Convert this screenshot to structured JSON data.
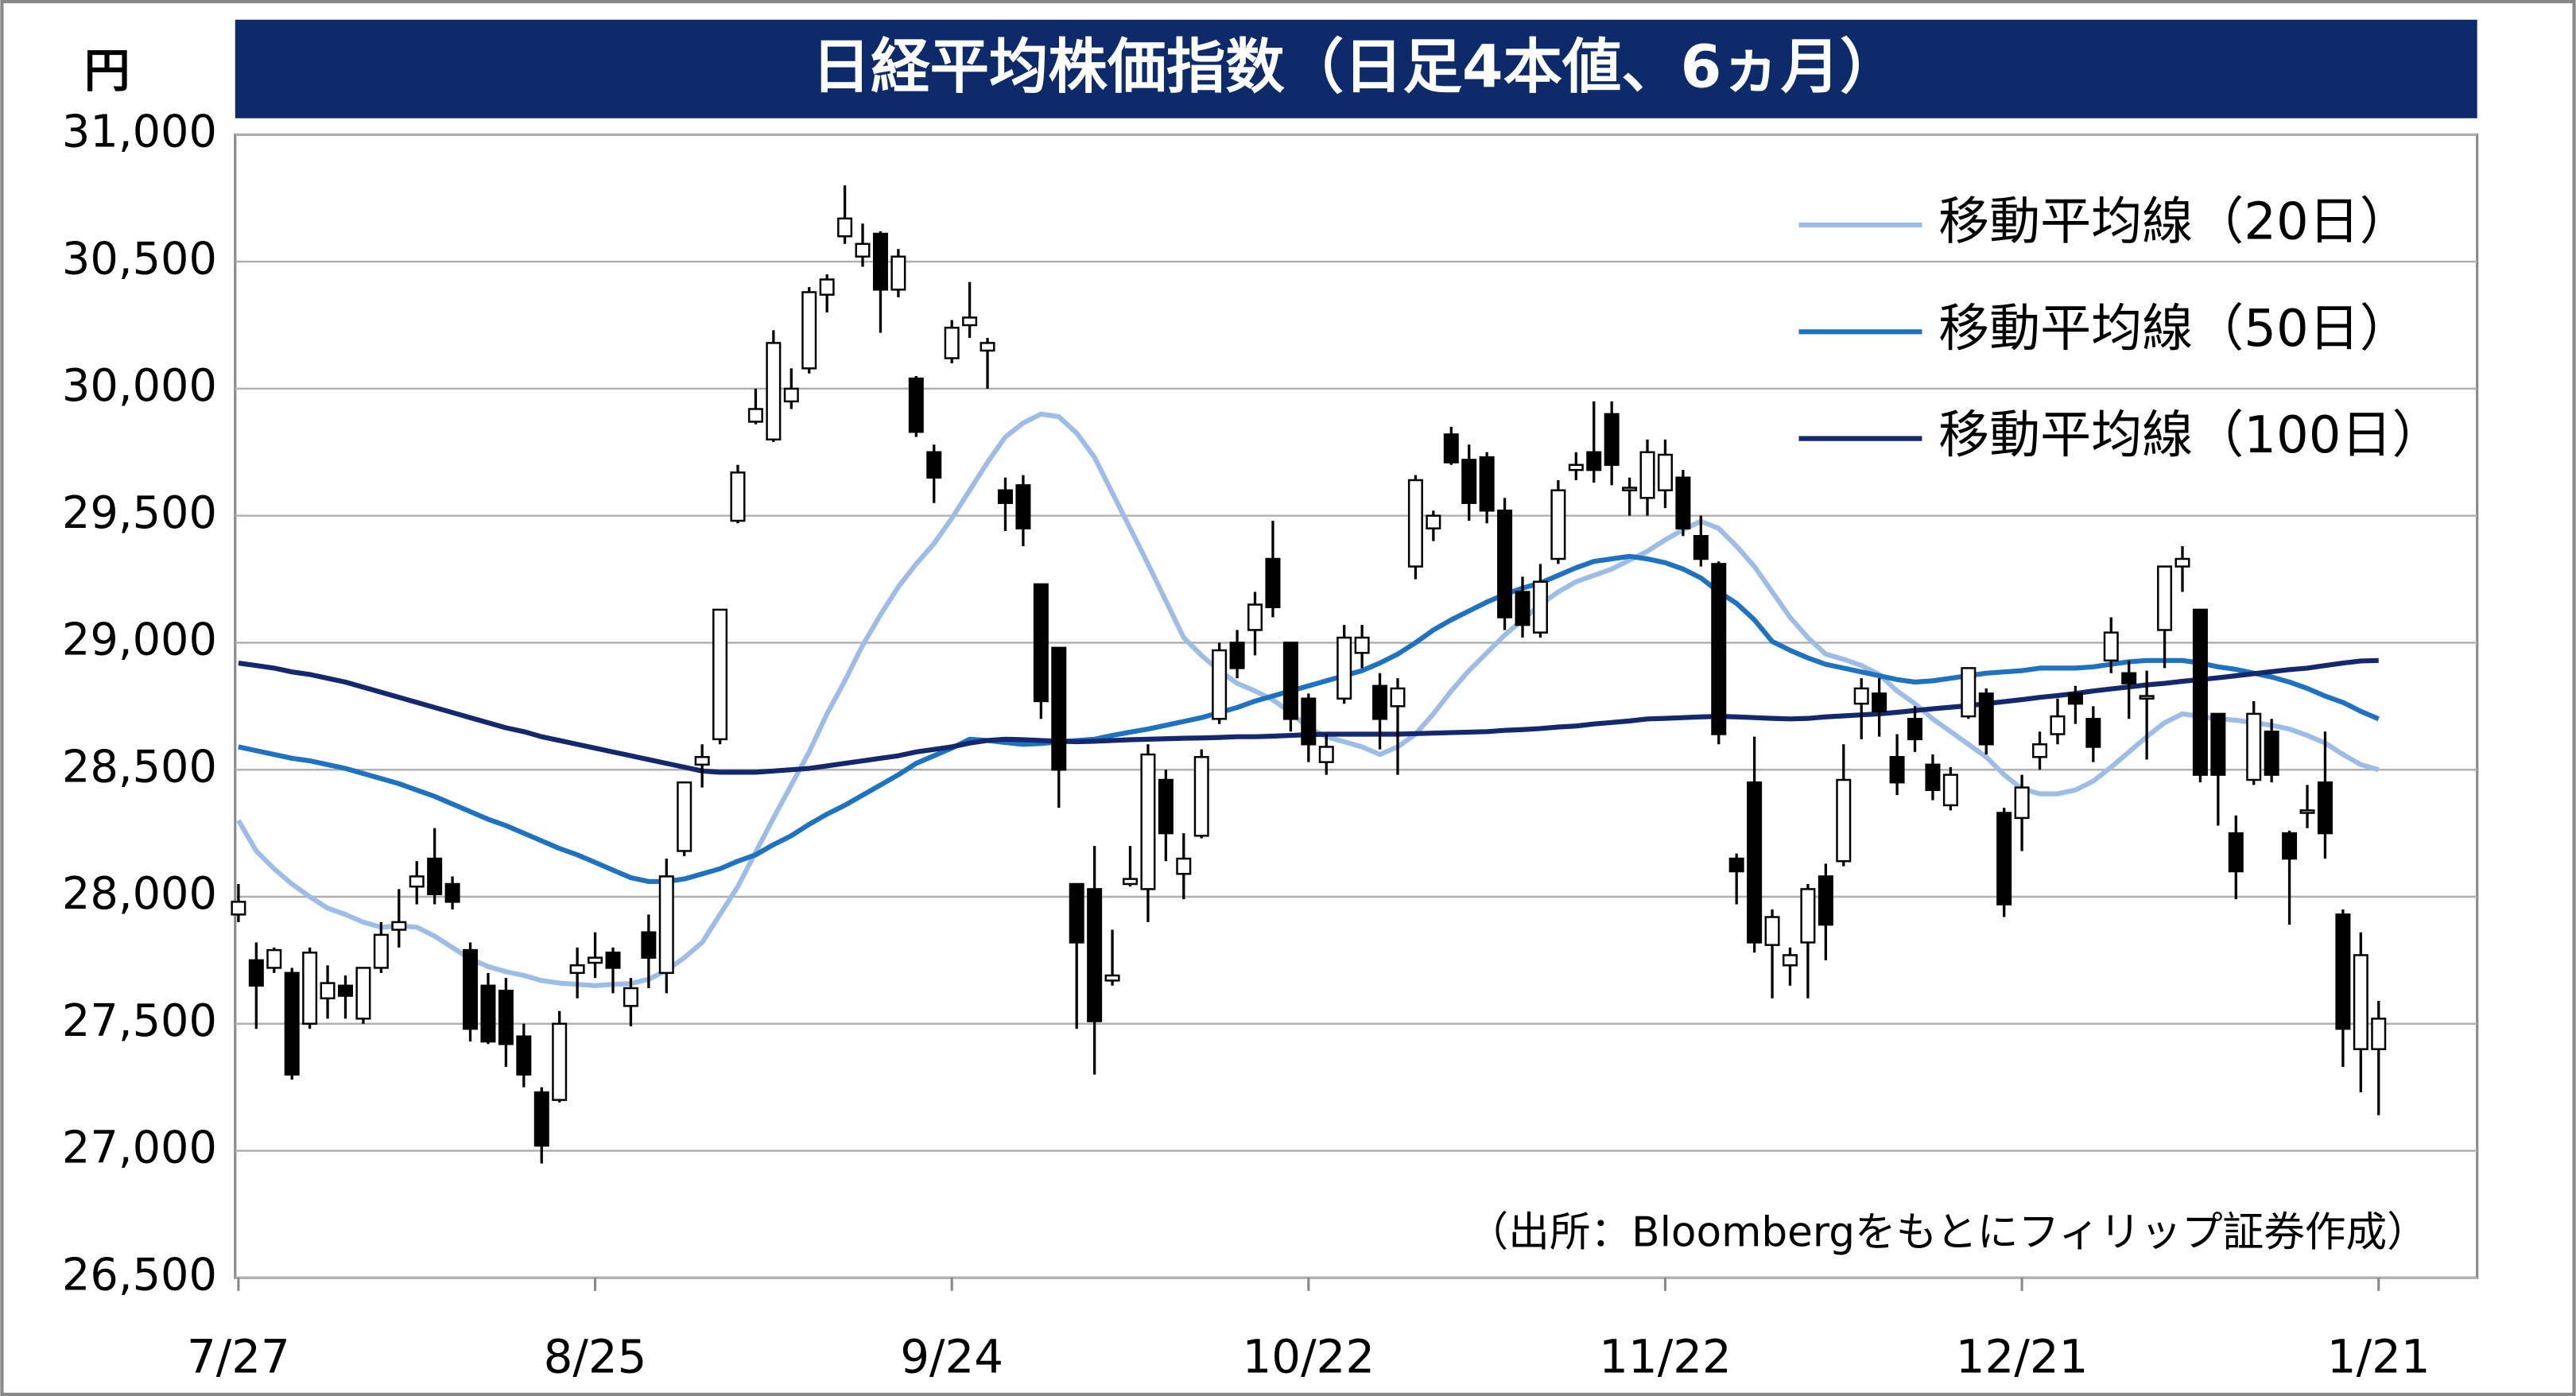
{
  "chart_data": {
    "type": "candlestick",
    "title": "日経平均株価指数（日足4本値、6ヵ月）",
    "y_unit": "円",
    "annotation": "（出所：Bloombergをもとにフィリップ証券作成）",
    "categories": [
      "7/27",
      null,
      null,
      null,
      null,
      null,
      null,
      null,
      null,
      null,
      null,
      null,
      null,
      null,
      null,
      null,
      null,
      null,
      null,
      null,
      "8/25",
      null,
      null,
      null,
      null,
      null,
      null,
      null,
      null,
      null,
      null,
      null,
      null,
      null,
      null,
      null,
      null,
      null,
      null,
      null,
      "9/24",
      null,
      null,
      null,
      null,
      null,
      null,
      null,
      null,
      null,
      null,
      null,
      null,
      null,
      null,
      null,
      null,
      null,
      null,
      null,
      "10/22",
      null,
      null,
      null,
      null,
      null,
      null,
      null,
      null,
      null,
      null,
      null,
      null,
      null,
      null,
      null,
      null,
      null,
      null,
      null,
      "11/22",
      null,
      null,
      null,
      null,
      null,
      null,
      null,
      null,
      null,
      null,
      null,
      null,
      null,
      null,
      null,
      null,
      null,
      null,
      null,
      "12/21",
      null,
      null,
      null,
      null,
      null,
      null,
      null,
      null,
      null,
      null,
      null,
      null,
      null,
      null,
      null,
      null,
      null,
      null,
      null,
      "1/21"
    ],
    "open": [
      27930,
      27750,
      27720,
      27700,
      27500,
      27600,
      27650,
      27520,
      27720,
      27870,
      28040,
      28150,
      28050,
      27790,
      27650,
      27630,
      27450,
      27230,
      27200,
      27700,
      27740,
      27780,
      27570,
      27860,
      27700,
      28180,
      28520,
      28620,
      29480,
      29870,
      29800,
      29950,
      30080,
      30370,
      30600,
      30520,
      30610,
      30390,
      30040,
      29750,
      30120,
      30250,
      30150,
      29600,
      29620,
      29230,
      28980,
      28050,
      28030,
      27670,
      28050,
      28030,
      28460,
      28090,
      28240,
      28700,
      29000,
      29050,
      29330,
      29000,
      28780,
      28530,
      28780,
      28960,
      28830,
      28750,
      29300,
      29450,
      29820,
      29720,
      29730,
      29520,
      29200,
      29040,
      29330,
      29680,
      29750,
      29900,
      29600,
      29570,
      29600,
      29650,
      29420,
      29310,
      28150,
      28450,
      27810,
      27730,
      27820,
      28080,
      28140,
      28760,
      28800,
      28550,
      28700,
      28520,
      28360,
      28710,
      28800,
      28330,
      28310,
      28550,
      28640,
      28800,
      28700,
      28930,
      28880,
      28780,
      29050,
      29300,
      29130,
      28720,
      28250,
      28460,
      28650,
      28250,
      28330,
      28450,
      27930,
      27400,
      27400
    ],
    "high": [
      28050,
      27820,
      27800,
      27720,
      27800,
      27730,
      27690,
      27720,
      27900,
      28030,
      28140,
      28270,
      28080,
      27820,
      27700,
      27680,
      27500,
      27250,
      27550,
      27800,
      27860,
      27800,
      27680,
      27930,
      28150,
      28450,
      28600,
      29130,
      29700,
      30000,
      30230,
      30080,
      30400,
      30450,
      30800,
      30650,
      30620,
      30550,
      30050,
      29780,
      30270,
      30420,
      30200,
      29650,
      29660,
      29230,
      28980,
      28050,
      28200,
      27870,
      28200,
      28600,
      28500,
      28250,
      28580,
      29000,
      29050,
      29200,
      29480,
      29000,
      28800,
      28640,
      29070,
      29070,
      28880,
      28860,
      29660,
      29520,
      29850,
      29780,
      29750,
      29570,
      29260,
      29310,
      29640,
      29750,
      29950,
      29950,
      29650,
      29800,
      29800,
      29680,
      29500,
      29320,
      28170,
      28630,
      27950,
      27800,
      28050,
      28130,
      28600,
      28860,
      28860,
      28640,
      28750,
      28560,
      28510,
      28900,
      28820,
      28350,
      28480,
      28650,
      28780,
      28830,
      28750,
      29100,
      28930,
      28890,
      29300,
      29380,
      29130,
      28720,
      28320,
      28770,
      28700,
      28260,
      28440,
      28650,
      27950,
      27860,
      27590
    ],
    "low": [
      27900,
      27480,
      27700,
      27280,
      27480,
      27520,
      27520,
      27500,
      27700,
      27800,
      27970,
      27970,
      27950,
      27430,
      27420,
      27330,
      27250,
      26950,
      27190,
      27600,
      27680,
      27620,
      27490,
      27640,
      27620,
      28160,
      28430,
      28600,
      29470,
      29860,
      29790,
      29920,
      30060,
      30300,
      30570,
      30480,
      30220,
      30360,
      29810,
      29550,
      30100,
      30200,
      30000,
      29440,
      29380,
      28700,
      28350,
      27480,
      27300,
      27650,
      28040,
      27900,
      28140,
      27990,
      28230,
      28680,
      28860,
      28950,
      29100,
      28650,
      28530,
      28480,
      28760,
      28900,
      28580,
      28480,
      29250,
      29400,
      29700,
      29480,
      29470,
      29050,
      29020,
      29020,
      29310,
      29640,
      29630,
      29620,
      29500,
      29500,
      29530,
      29420,
      29300,
      28600,
      27970,
      27780,
      27600,
      27650,
      27600,
      27750,
      28120,
      28620,
      28630,
      28400,
      28570,
      28380,
      28340,
      28700,
      28560,
      27920,
      28180,
      28500,
      28600,
      28680,
      28530,
      28880,
      28700,
      28540,
      28900,
      29200,
      28450,
      28280,
      27990,
      28440,
      28450,
      27890,
      28270,
      28150,
      27330,
      27230,
      27140
    ],
    "close": [
      27980,
      27650,
      27790,
      27300,
      27780,
      27660,
      27610,
      27720,
      27850,
      27900,
      28080,
      28010,
      27980,
      27480,
      27430,
      27420,
      27300,
      27020,
      27500,
      27730,
      27760,
      27720,
      27640,
      27760,
      28080,
      28450,
      28550,
      29130,
      29670,
      29920,
      30180,
      30000,
      30380,
      30430,
      30670,
      30570,
      30390,
      30520,
      29830,
      29650,
      30240,
      30280,
      30180,
      29550,
      29450,
      28770,
      28500,
      27820,
      27510,
      27690,
      28070,
      28560,
      28250,
      28150,
      28550,
      28970,
      28900,
      29150,
      29140,
      28700,
      28600,
      28590,
      29020,
      29020,
      28700,
      28820,
      29640,
      29500,
      29710,
      29550,
      29520,
      29100,
      29070,
      29240,
      29600,
      29700,
      29680,
      29700,
      29610,
      29750,
      29740,
      29450,
      29330,
      28640,
      28100,
      27820,
      27920,
      27770,
      28030,
      27890,
      28460,
      28820,
      28730,
      28450,
      28620,
      28420,
      28480,
      28900,
      28600,
      27970,
      28430,
      28600,
      28710,
      28760,
      28590,
      29040,
      28840,
      28790,
      29300,
      29330,
      28480,
      28480,
      28100,
      28720,
      28480,
      28150,
      28340,
      28250,
      27480,
      27770,
      27520
    ],
    "up_color": "#ffffff",
    "down_color": "#000000",
    "edge_color": "#000000",
    "series": [
      {
        "name": "移動平均線（20日）",
        "color": "#9dbde6",
        "values": [
          28300,
          28180,
          28110,
          28050,
          28000,
          27955,
          27930,
          27900,
          27880,
          27885,
          27880,
          27845,
          27800,
          27755,
          27725,
          27705,
          27690,
          27670,
          27660,
          27655,
          27650,
          27655,
          27658,
          27675,
          27710,
          27760,
          27820,
          27930,
          28040,
          28175,
          28310,
          28440,
          28570,
          28720,
          28850,
          28990,
          29110,
          29220,
          29310,
          29390,
          29490,
          29600,
          29710,
          29810,
          29865,
          29900,
          29890,
          29825,
          29730,
          29590,
          29450,
          29310,
          29165,
          29020,
          28950,
          28890,
          28840,
          28810,
          28775,
          28725,
          28665,
          28630,
          28610,
          28590,
          28560,
          28590,
          28640,
          28720,
          28810,
          28890,
          28960,
          29030,
          29090,
          29150,
          29200,
          29240,
          29265,
          29290,
          29325,
          29360,
          29405,
          29445,
          29478,
          29450,
          29380,
          29300,
          29200,
          29100,
          29020,
          28955,
          28935,
          28910,
          28875,
          28810,
          28760,
          28700,
          28650,
          28600,
          28550,
          28480,
          28425,
          28405,
          28405,
          28420,
          28455,
          28510,
          28570,
          28630,
          28685,
          28720,
          28710,
          28700,
          28695,
          28685,
          28675,
          28660,
          28635,
          28605,
          28560,
          28520,
          28500
        ]
      },
      {
        "name": "移動平均線（50日）",
        "color": "#1f72c0",
        "values": [
          28590,
          28575,
          28560,
          28545,
          28535,
          28520,
          28505,
          28485,
          28465,
          28445,
          28420,
          28395,
          28365,
          28335,
          28305,
          28280,
          28250,
          28220,
          28190,
          28165,
          28135,
          28105,
          28075,
          28060,
          28060,
          28070,
          28090,
          28110,
          28140,
          28165,
          28205,
          28240,
          28285,
          28325,
          28360,
          28400,
          28440,
          28480,
          28525,
          28555,
          28585,
          28620,
          28615,
          28607,
          28600,
          28603,
          28610,
          28615,
          28620,
          28635,
          28648,
          28660,
          28675,
          28690,
          28705,
          28725,
          28745,
          28770,
          28790,
          28810,
          28830,
          28850,
          28870,
          28890,
          28920,
          28955,
          29000,
          29050,
          29090,
          29125,
          29160,
          29190,
          29215,
          29235,
          29265,
          29295,
          29320,
          29330,
          29340,
          29330,
          29315,
          29290,
          29255,
          29200,
          29155,
          29090,
          29005,
          28970,
          28940,
          28915,
          28900,
          28885,
          28870,
          28855,
          28845,
          28850,
          28860,
          28870,
          28880,
          28885,
          28890,
          28900,
          28900,
          28900,
          28905,
          28915,
          28925,
          28930,
          28930,
          28930,
          28920,
          28905,
          28895,
          28880,
          28865,
          28845,
          28820,
          28790,
          28765,
          28730,
          28700
        ]
      },
      {
        "name": "移動平均線（100日）",
        "color": "#14286e",
        "values": [
          28920,
          28910,
          28900,
          28885,
          28875,
          28860,
          28845,
          28825,
          28805,
          28785,
          28765,
          28745,
          28725,
          28705,
          28685,
          28665,
          28650,
          28630,
          28615,
          28600,
          28585,
          28570,
          28555,
          28540,
          28525,
          28510,
          28495,
          28490,
          28490,
          28490,
          28495,
          28500,
          28505,
          28515,
          28525,
          28535,
          28545,
          28555,
          28570,
          28580,
          28590,
          28605,
          28615,
          28620,
          28618,
          28615,
          28612,
          28610,
          28612,
          28615,
          28618,
          28620,
          28622,
          28624,
          28625,
          28627,
          28630,
          28630,
          28632,
          28635,
          28638,
          28640,
          28640,
          28640,
          28640,
          28640,
          28642,
          28644,
          28646,
          28648,
          28650,
          28655,
          28658,
          28662,
          28668,
          28672,
          28680,
          28686,
          28692,
          28700,
          28702,
          28705,
          28708,
          28710,
          28708,
          28705,
          28702,
          28700,
          28702,
          28708,
          28712,
          28716,
          28720,
          28726,
          28733,
          28740,
          28746,
          28752,
          28760,
          28768,
          28776,
          28785,
          28792,
          28800,
          28810,
          28818,
          28826,
          28834,
          28840,
          28848,
          28855,
          28862,
          28870,
          28878,
          28886,
          28894,
          28900,
          28910,
          28920,
          28928,
          28930
        ]
      }
    ],
    "ylim": [
      26500,
      31000
    ],
    "yticks": [
      {
        "value": 26500,
        "label": "26,500"
      },
      {
        "value": 27000,
        "label": "27,000"
      },
      {
        "value": 27500,
        "label": "27,500"
      },
      {
        "value": 28000,
        "label": "28,000"
      },
      {
        "value": 28500,
        "label": "28,500"
      },
      {
        "value": 29000,
        "label": "29,000"
      },
      {
        "value": 29500,
        "label": "29,500"
      },
      {
        "value": 30000,
        "label": "30,000"
      },
      {
        "value": 30500,
        "label": "30,500"
      },
      {
        "value": 31000,
        "label": "31,000"
      }
    ],
    "grid": true,
    "legend": "upper right",
    "title_background": "#0d2a6b"
  }
}
